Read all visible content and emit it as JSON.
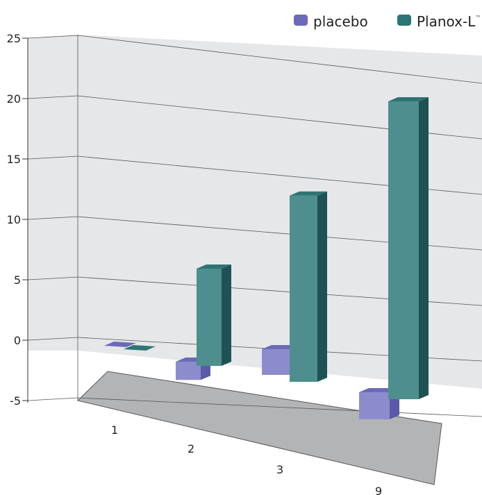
{
  "colors": {
    "placebo_front": "#8c8ccc",
    "placebo_top": "#6a6ab8",
    "placebo_side": "#5a5aa8",
    "planox_front": "#4e8e8e",
    "planox_top": "#2e7474",
    "planox_side": "#1f5252",
    "wall": "#e6e7e9",
    "floor": "#b3b4b6",
    "grid": "#555555"
  },
  "legend": {
    "placement": "top-right",
    "placebo": "placebo",
    "planox": "Planox-L",
    "planox_mark": "™"
  },
  "chart_data": {
    "type": "bar",
    "style": "3d-clustered",
    "categories": [
      "1",
      "2",
      "3",
      "9"
    ],
    "series": [
      {
        "name": "placebo",
        "values": [
          0,
          -1.5,
          2,
          -2
        ]
      },
      {
        "name": "Planox-L™",
        "values": [
          0,
          8,
          14.5,
          22
        ]
      }
    ],
    "yticks": [
      "-5",
      "0",
      "5",
      "10",
      "15",
      "20",
      "25"
    ],
    "ylim": [
      -5,
      25
    ],
    "grid": true,
    "legend": "top-right"
  }
}
